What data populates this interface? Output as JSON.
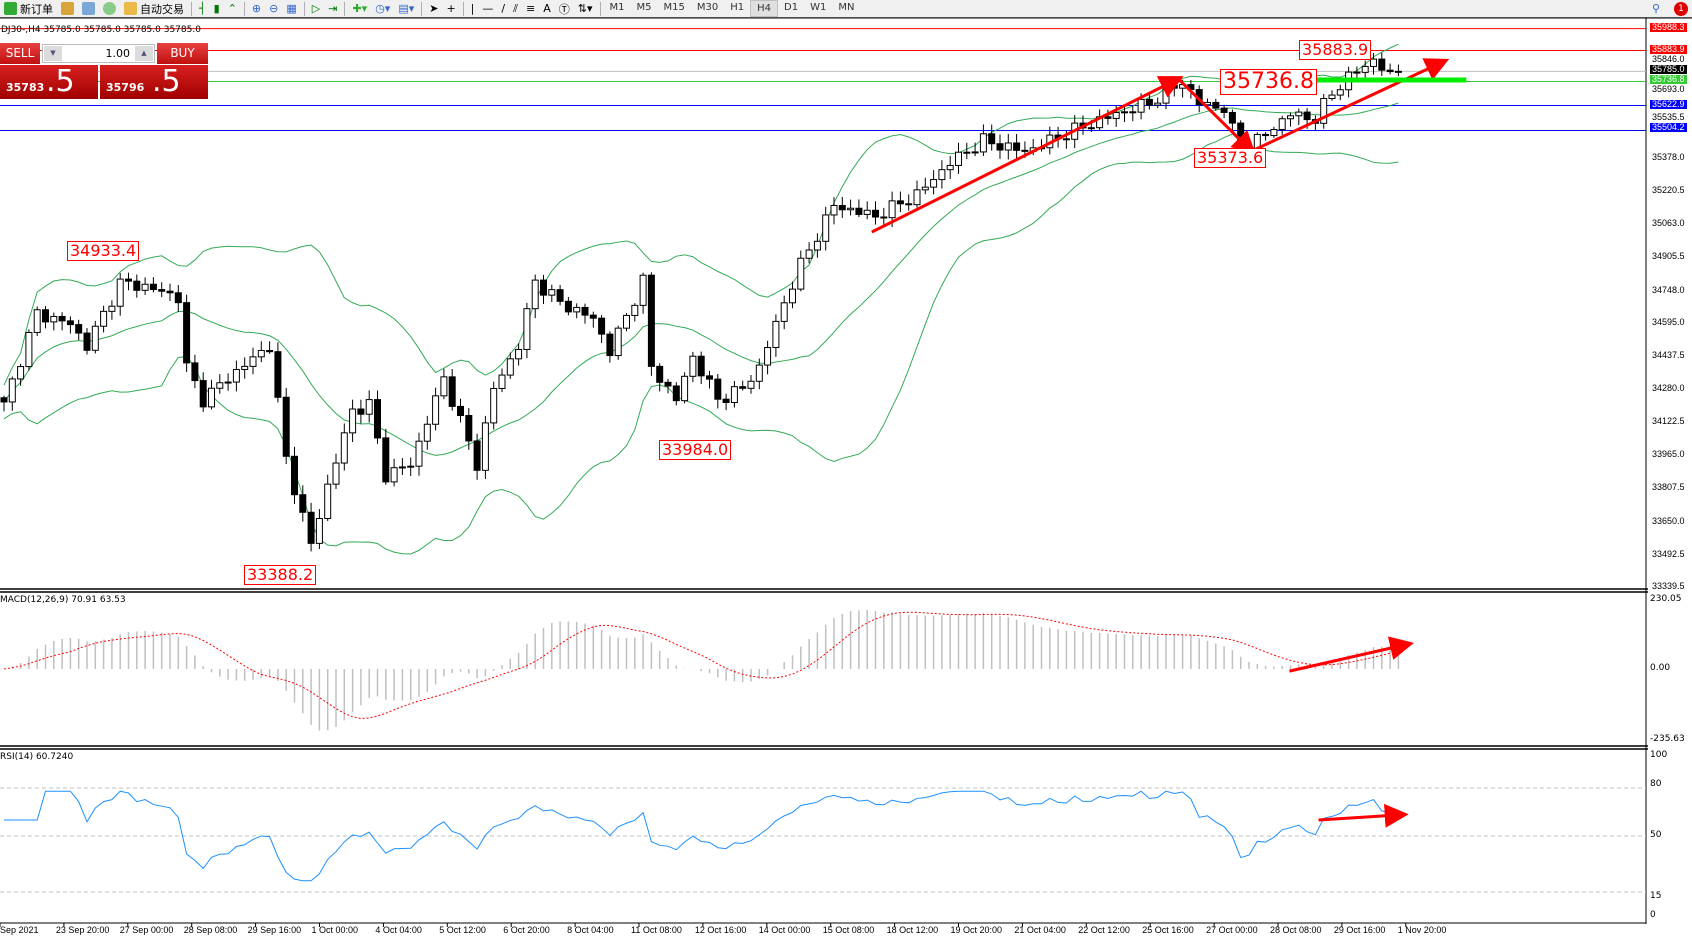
{
  "toolbar": {
    "new_order": "新订单",
    "auto_trading": "自动交易",
    "timeframes": [
      "M1",
      "M5",
      "M15",
      "M30",
      "H1",
      "H4",
      "D1",
      "W1",
      "MN"
    ],
    "selected_timeframe": "H4",
    "notification_count": "1"
  },
  "chart_header": "DJ30-,H4  35785.0 35785.0 35785.0 35785.0",
  "trade_panel": {
    "sell_label": "SELL",
    "buy_label": "BUY",
    "lot": "1.00",
    "sell_price_small": "35783",
    "sell_price_big": ".5",
    "buy_price_small": "35796",
    "buy_price_big": ".5"
  },
  "price_axis": {
    "labels": [
      "35378.0",
      "35220.5",
      "35063.0",
      "34905.5",
      "34748.0",
      "34595.0",
      "34437.5",
      "34280.0",
      "34122.5",
      "33965.0",
      "33807.5",
      "33650.0",
      "33492.5",
      "33339.5"
    ],
    "extra_labels": [
      "35846.0",
      "35693.0",
      "35535.5"
    ],
    "level_labels": [
      {
        "text": "35988.3",
        "color": "#ff0000"
      },
      {
        "text": "35883.9",
        "color": "#ff0000"
      },
      {
        "text": "35785.0",
        "color": "#000000"
      },
      {
        "text": "35736.8",
        "color": "#33cc33"
      },
      {
        "text": "35622.9",
        "color": "#0000ff"
      },
      {
        "text": "35504.2",
        "color": "#0000ff"
      }
    ]
  },
  "annotations": [
    "34933.4",
    "33388.2",
    "33984.0",
    "35883.9",
    "35736.8",
    "35373.6"
  ],
  "macd": {
    "label": "MACD(12,26,9) 70.91 63.53",
    "axis": [
      "230.05",
      "0.00",
      "-235.63"
    ]
  },
  "rsi": {
    "label": "RSI(14) 60.7240",
    "axis": [
      "100",
      "80",
      "50",
      "15",
      "0"
    ]
  },
  "time_axis": [
    "Sep 2021",
    "23 Sep 20:00",
    "27 Sep 00:00",
    "28 Sep 08:00",
    "29 Sep 16:00",
    "1 Oct 00:00",
    "4 Oct 04:00",
    "5 Oct 12:00",
    "6 Oct 20:00",
    "8 Oct 04:00",
    "11 Oct 08:00",
    "12 Oct 16:00",
    "14 Oct 00:00",
    "15 Oct 08:00",
    "18 Oct 12:00",
    "19 Oct 20:00",
    "21 Oct 04:00",
    "22 Oct 12:00",
    "25 Oct 16:00",
    "27 Oct 00:00",
    "28 Oct 08:00",
    "29 Oct 16:00",
    "1 Nov 20:00"
  ],
  "chart_data": {
    "type": "candlestick",
    "symbol": "DJ30-",
    "timeframe": "H4",
    "ylim": [
      33339.5,
      35988.3
    ],
    "approx_close_waypoints": [
      [
        0,
        34200
      ],
      [
        4,
        34635
      ],
      [
        8,
        34584
      ],
      [
        10,
        34482
      ],
      [
        14,
        34779
      ],
      [
        17,
        34763
      ],
      [
        21,
        34712
      ],
      [
        22,
        34379
      ],
      [
        24,
        34226
      ],
      [
        27,
        34328
      ],
      [
        32,
        34482
      ],
      [
        34,
        33944
      ],
      [
        37,
        33534
      ],
      [
        39,
        33815
      ],
      [
        42,
        34174
      ],
      [
        44,
        34200
      ],
      [
        46,
        33866
      ],
      [
        49,
        33918
      ],
      [
        53,
        34328
      ],
      [
        57,
        33918
      ],
      [
        59,
        34277
      ],
      [
        62,
        34482
      ],
      [
        64,
        34789
      ],
      [
        67,
        34686
      ],
      [
        71,
        34610
      ],
      [
        73,
        34456
      ],
      [
        77,
        34789
      ],
      [
        78,
        34379
      ],
      [
        81,
        34226
      ],
      [
        83,
        34430
      ],
      [
        86,
        34226
      ],
      [
        89,
        34277
      ],
      [
        91,
        34379
      ],
      [
        94,
        34686
      ],
      [
        96,
        34866
      ],
      [
        100,
        35148
      ],
      [
        105,
        35096
      ],
      [
        110,
        35199
      ],
      [
        114,
        35352
      ],
      [
        118,
        35455
      ],
      [
        123,
        35404
      ],
      [
        129,
        35506
      ],
      [
        134,
        35583
      ],
      [
        138,
        35634
      ],
      [
        142,
        35737
      ],
      [
        144,
        35634
      ],
      [
        147,
        35608
      ],
      [
        149,
        35404
      ],
      [
        151,
        35455
      ],
      [
        155,
        35583
      ],
      [
        158,
        35557
      ],
      [
        160,
        35685
      ],
      [
        163,
        35788
      ],
      [
        165,
        35839
      ],
      [
        167,
        35762
      ],
      [
        168,
        35785
      ]
    ],
    "horizontal_levels": [
      {
        "price": 35988.3,
        "color": "#ff0000"
      },
      {
        "price": 35883.9,
        "color": "#ff0000"
      },
      {
        "price": 35785.0,
        "color": "#c0c0c0"
      },
      {
        "price": 35736.8,
        "color": "#33cc33"
      },
      {
        "price": 35622.9,
        "color": "#0000ff"
      },
      {
        "price": 35504.2,
        "color": "#0000ff"
      }
    ],
    "indicators": [
      "Bollinger Bands",
      "MACD(12,26,9)",
      "RSI(14)"
    ],
    "colors": {
      "candle": "#000000",
      "bands": "#33aa55",
      "macd_hist": "#c0c0c0",
      "macd_signal": "#ff0000",
      "rsi": "#1e90ff",
      "drawing": "#ff0000",
      "support": "#00ee00"
    }
  }
}
